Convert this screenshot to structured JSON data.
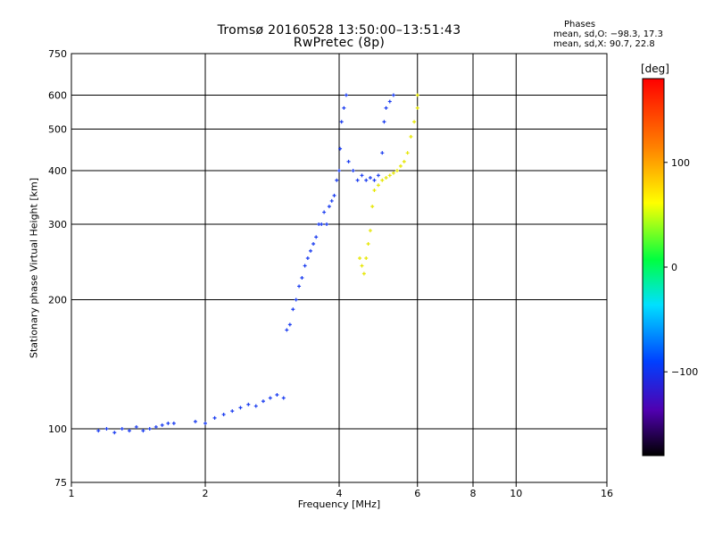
{
  "header": {
    "title_line1": "Tromsø 20160528 13:50:00–13:51:43",
    "title_line2": "RwPretec (8p)",
    "phases_heading": "Phases",
    "phases_O": "mean, sd,O: −98.3, 17.3",
    "phases_X": "mean, sd,X:  90.7, 22.8"
  },
  "colorbar": {
    "unit": "[deg]",
    "ticks": [
      {
        "value": 100,
        "label": "100"
      },
      {
        "value": 0,
        "label": "0"
      },
      {
        "value": -100,
        "label": "−100"
      }
    ],
    "range": [
      -180,
      180
    ]
  },
  "chart_data": {
    "type": "scatter",
    "xscale": "log",
    "yscale": "log",
    "xlabel": "Frequency [MHz]",
    "ylabel": "Stationary phase Virtual Height [km]",
    "xlim": [
      1,
      16
    ],
    "ylim": [
      75,
      750
    ],
    "xticks": [
      {
        "v": 1,
        "label": "1"
      },
      {
        "v": 2,
        "label": "2"
      },
      {
        "v": 4,
        "label": "4"
      },
      {
        "v": 6,
        "label": "6"
      },
      {
        "v": 8,
        "label": "8"
      },
      {
        "v": 10,
        "label": "10"
      },
      {
        "v": 16,
        "label": "16"
      }
    ],
    "yticks": [
      {
        "v": 75,
        "label": "75"
      },
      {
        "v": 100,
        "label": "100"
      },
      {
        "v": 200,
        "label": "200"
      },
      {
        "v": 300,
        "label": "300"
      },
      {
        "v": 400,
        "label": "400"
      },
      {
        "v": 500,
        "label": "500"
      },
      {
        "v": 600,
        "label": "600"
      },
      {
        "v": 750,
        "label": "750"
      }
    ],
    "grid": true,
    "series": [
      {
        "mode": "O",
        "color": "#1a3cf0",
        "points": [
          [
            1.15,
            99
          ],
          [
            1.2,
            100
          ],
          [
            1.25,
            98
          ],
          [
            1.3,
            100
          ],
          [
            1.35,
            99
          ],
          [
            1.4,
            101
          ],
          [
            1.45,
            99
          ],
          [
            1.5,
            100
          ],
          [
            1.55,
            101
          ],
          [
            1.6,
            102
          ],
          [
            1.65,
            103
          ],
          [
            1.7,
            103
          ],
          [
            1.9,
            104
          ],
          [
            2.0,
            103
          ],
          [
            2.1,
            106
          ],
          [
            2.2,
            108
          ],
          [
            2.3,
            110
          ],
          [
            2.4,
            112
          ],
          [
            2.5,
            114
          ],
          [
            2.6,
            113
          ],
          [
            2.7,
            116
          ],
          [
            2.8,
            118
          ],
          [
            2.9,
            120
          ],
          [
            3.0,
            118
          ],
          [
            3.05,
            170
          ],
          [
            3.1,
            175
          ],
          [
            3.15,
            190
          ],
          [
            3.2,
            200
          ],
          [
            3.25,
            215
          ],
          [
            3.3,
            225
          ],
          [
            3.35,
            240
          ],
          [
            3.4,
            250
          ],
          [
            3.45,
            260
          ],
          [
            3.5,
            270
          ],
          [
            3.55,
            280
          ],
          [
            3.6,
            300
          ],
          [
            3.65,
            300
          ],
          [
            3.7,
            320
          ],
          [
            3.75,
            300
          ],
          [
            3.8,
            330
          ],
          [
            3.85,
            340
          ],
          [
            3.9,
            350
          ],
          [
            3.95,
            380
          ],
          [
            4.0,
            400
          ],
          [
            4.02,
            450
          ],
          [
            4.05,
            520
          ],
          [
            4.1,
            560
          ],
          [
            4.15,
            600
          ],
          [
            4.2,
            420
          ],
          [
            4.3,
            400
          ],
          [
            4.4,
            380
          ],
          [
            4.5,
            390
          ],
          [
            4.6,
            380
          ],
          [
            4.7,
            385
          ],
          [
            4.8,
            380
          ],
          [
            4.9,
            390
          ],
          [
            5.0,
            440
          ],
          [
            5.05,
            520
          ],
          [
            5.1,
            560
          ],
          [
            5.2,
            580
          ],
          [
            5.3,
            600
          ]
        ]
      },
      {
        "mode": "X",
        "color": "#e6e600",
        "points": [
          [
            4.45,
            250
          ],
          [
            4.5,
            240
          ],
          [
            4.55,
            230
          ],
          [
            4.6,
            250
          ],
          [
            4.65,
            270
          ],
          [
            4.7,
            290
          ],
          [
            4.75,
            330
          ],
          [
            4.8,
            360
          ],
          [
            4.9,
            370
          ],
          [
            5.0,
            380
          ],
          [
            5.1,
            385
          ],
          [
            5.2,
            390
          ],
          [
            5.3,
            395
          ],
          [
            5.4,
            400
          ],
          [
            5.5,
            410
          ],
          [
            5.6,
            420
          ],
          [
            5.7,
            440
          ],
          [
            5.8,
            480
          ],
          [
            5.9,
            520
          ],
          [
            6.0,
            560
          ],
          [
            6.0,
            600
          ]
        ]
      }
    ]
  }
}
